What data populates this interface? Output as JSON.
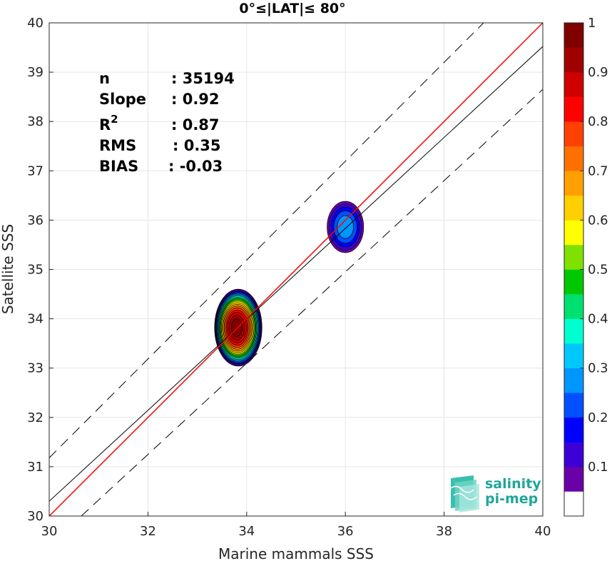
{
  "chart_data": {
    "type": "contour",
    "title": "0°≤|LAT|≤ 80°",
    "xlabel": "Marine mammals SSS",
    "ylabel": "Satellite SSS",
    "xlim": [
      30,
      40
    ],
    "ylim": [
      30,
      40
    ],
    "xticks": [
      30,
      32,
      34,
      36,
      38,
      40
    ],
    "yticks": [
      30,
      31,
      32,
      33,
      34,
      35,
      36,
      37,
      38,
      39,
      40
    ],
    "grid": true,
    "stats": [
      {
        "label": "n",
        "sep": ": ",
        "value": "35194"
      },
      {
        "label": "Slope",
        "sep": ": ",
        "value": "0.92"
      },
      {
        "label": "R",
        "sup": "2",
        "sep": ": ",
        "value": "0.87"
      },
      {
        "label": "RMS",
        "sep": ": ",
        "value": "0.35"
      },
      {
        "label": "BIAS",
        "sep": ": ",
        "value": "-0.03"
      }
    ],
    "lines": {
      "one_to_one": {
        "color": "#ff0000",
        "from": [
          30,
          30
        ],
        "to": [
          40,
          40
        ]
      },
      "fit": {
        "color": "#000000",
        "from": [
          30,
          30.3
        ],
        "to": [
          40,
          39.52
        ]
      },
      "upper_dashed": {
        "from": [
          30,
          31.18
        ],
        "to": [
          38.8,
          40
        ]
      },
      "lower_dashed": {
        "from": [
          30.65,
          30
        ],
        "to": [
          40,
          38.65
        ]
      }
    },
    "density_peaks": [
      {
        "x": 33.83,
        "y": 33.82,
        "peak_level": 1.0,
        "rx": 0.48,
        "ry": 0.78
      },
      {
        "x": 36.0,
        "y": 35.86,
        "peak_level": 0.25,
        "rx": 0.37,
        "ry": 0.52
      }
    ],
    "colorbar": {
      "range": [
        0,
        1
      ],
      "ticks": [
        "0.1",
        "0.2",
        "0.3",
        "0.4",
        "0.5",
        "0.6",
        "0.7",
        "0.8",
        "0.9",
        "1"
      ],
      "colors": [
        "#ffffff",
        "#6a00a8",
        "#3b00d6",
        "#0000ff",
        "#0050ff",
        "#0096ff",
        "#00c8ff",
        "#00ffd0",
        "#00e070",
        "#00c800",
        "#80e000",
        "#ffff00",
        "#ffd000",
        "#ffa000",
        "#ff7000",
        "#ff4000",
        "#ff0000",
        "#d00000",
        "#a00000",
        "#800000"
      ]
    }
  },
  "logo": {
    "line1": "salinity",
    "line2": "pi-mep"
  }
}
